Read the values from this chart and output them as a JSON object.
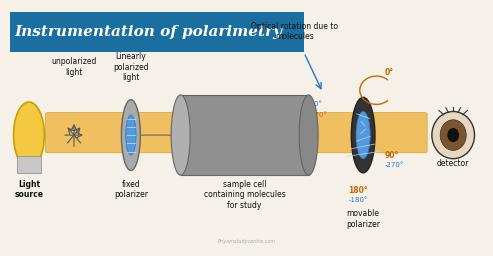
{
  "title": "Instrumentation of polarimetry",
  "title_bg": "#1a6ea0",
  "title_color": "white",
  "bg_color": "#f5f0e8",
  "beam_color": "#f0c060",
  "labels": {
    "light_source": "Light\nsource",
    "unpolarized": "unpolarized\nlight",
    "linearly": "Linearly\npolarized\nlight",
    "fixed_pol": "fixed\npolarizer",
    "sample_cell": "sample cell\ncontaining molecules\nfor study",
    "optical_rot": "Optical rotation due to\nmolecules",
    "movable_pol": "movable\npolarizer",
    "detector": "detector"
  },
  "angles": {
    "0": "0°",
    "neg90": "-90°",
    "270": "270°",
    "90": "90°",
    "neg270": "-270°",
    "180": "180°",
    "neg180": "-180°"
  },
  "angle_colors": {
    "0": "#cc6600",
    "neg90": "#2277cc",
    "270": "#cc6600",
    "90": "#cc6600",
    "neg270": "#2277cc",
    "180": "#cc6600",
    "neg180": "#2277cc"
  },
  "watermark": "Priyamstudycentre.com"
}
